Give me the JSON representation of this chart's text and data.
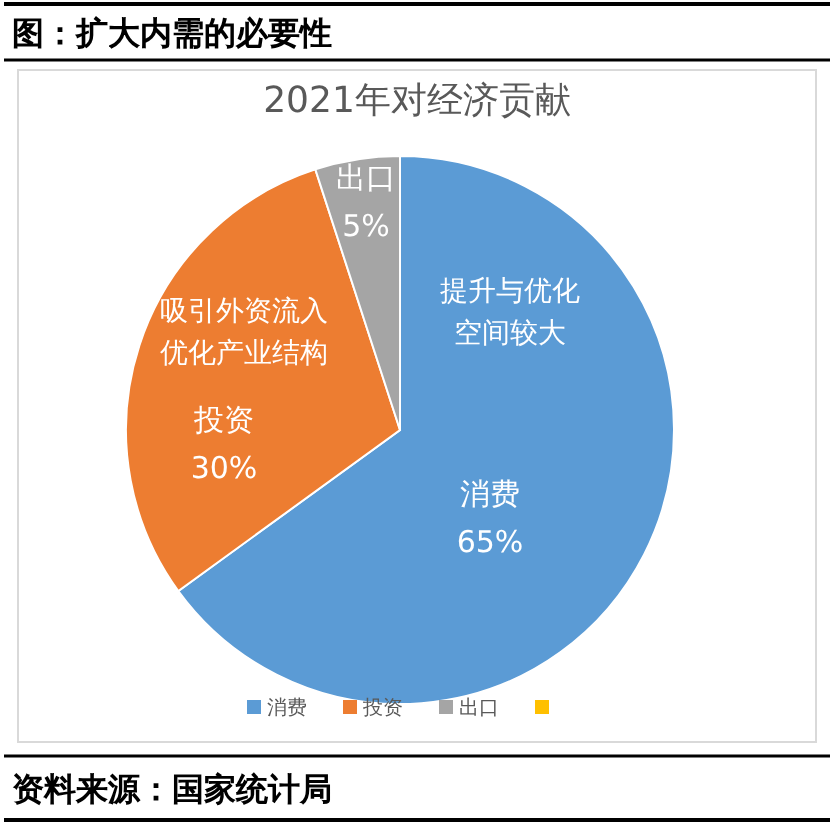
{
  "chart_data": {
    "type": "pie",
    "title": "2021年对经济贡献",
    "categories": [
      "消费",
      "投资",
      "出口",
      null
    ],
    "values": [
      65,
      30,
      5,
      0
    ],
    "colors": [
      "#5b9bd5",
      "#ed7d31",
      "#a5a5a5",
      "#ffc000"
    ],
    "value_labels": [
      "65%",
      "30%",
      "5%",
      null
    ],
    "legend": "bottom",
    "annotations": [
      "图：扩大内需的必要性",
      "资料来源：国家统计局",
      {
        "text": "提升与优化空间较大",
        "x": "消费"
      },
      {
        "text": "吸引外资流入优化产业结构",
        "x": "投资"
      }
    ]
  }
}
